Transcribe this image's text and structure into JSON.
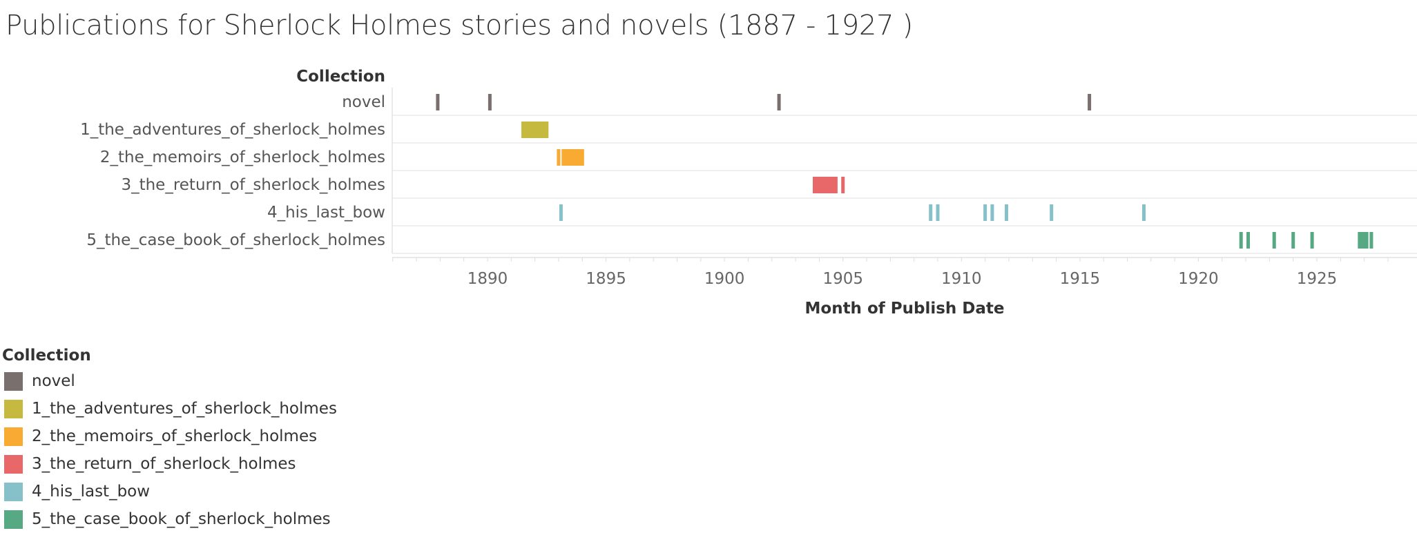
{
  "title": "Publications for Sherlock Holmes stories and novels (1887 - 1927 )",
  "chart_data": {
    "type": "timeline-strip",
    "title": "Publications for Sherlock Holmes stories and novels (1887 - 1927 )",
    "row_header": "Collection",
    "xlabel": "Month of Publish Date",
    "xlim": [
      1885.0,
      1928.0
    ],
    "x_ticks": [
      1890,
      1895,
      1900,
      1905,
      1910,
      1915,
      1920,
      1925
    ],
    "grid": false,
    "legend_position": "bottom-left",
    "series": [
      {
        "name": "novel",
        "color": "#79706e",
        "dates": [
          1887.9,
          1890.1,
          1902.3,
          1915.4
        ]
      },
      {
        "name": "1_the_adventures_of_sherlock_holmes",
        "color": "#c5b93f",
        "dates": [
          1891.5,
          1891.6,
          1891.7,
          1891.8,
          1891.9,
          1892.0,
          1892.1,
          1892.2,
          1892.3,
          1892.4,
          1892.5
        ]
      },
      {
        "name": "2_the_memoirs_of_sherlock_holmes",
        "color": "#f9aa33",
        "dates": [
          1893.0,
          1893.2,
          1893.3,
          1893.4,
          1893.5,
          1893.6,
          1893.7,
          1893.8,
          1893.9,
          1894.0
        ]
      },
      {
        "name": "3_the_return_of_sherlock_holmes",
        "color": "#e8686a",
        "dates": [
          1903.8,
          1903.9,
          1904.0,
          1904.1,
          1904.2,
          1904.3,
          1904.4,
          1904.5,
          1904.6,
          1904.7,
          1905.0
        ]
      },
      {
        "name": "4_his_last_bow",
        "color": "#86c1c9",
        "dates": [
          1893.1,
          1908.7,
          1909.0,
          1911.0,
          1911.3,
          1911.9,
          1913.8,
          1917.7
        ]
      },
      {
        "name": "5_the_case_book_of_sherlock_holmes",
        "color": "#56a983",
        "dates": [
          1921.8,
          1922.1,
          1923.2,
          1924.0,
          1924.8,
          1926.8,
          1926.9,
          1927.0,
          1927.1,
          1927.3
        ]
      }
    ]
  }
}
